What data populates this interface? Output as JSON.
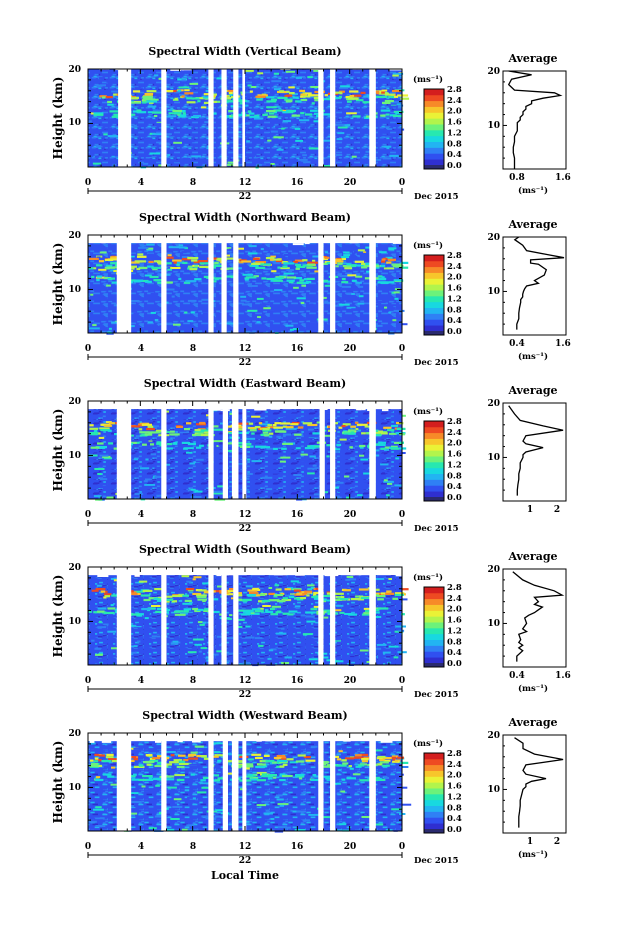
{
  "figure": {
    "xlabel": "Local Time",
    "date_label": "Dec 2015",
    "day_label": "22",
    "colorbar_unit": "(ms⁻¹)",
    "colorbar_ticks": [
      "0.0",
      "0.4",
      "0.8",
      "1.2",
      "1.6",
      "2.0",
      "2.4",
      "2.8"
    ],
    "profile_title": "Average",
    "profile_xlabel": "(ms⁻¹)",
    "ylabel": "Height (km)",
    "palette": [
      "#2a2a6e",
      "#2f2fd0",
      "#3050f0",
      "#2f80f5",
      "#22b4f2",
      "#18d8e0",
      "#27e8b0",
      "#6cf27a",
      "#b2f44c",
      "#eaf236",
      "#f7c62b",
      "#f78a28",
      "#ee4a22",
      "#d41e1e"
    ]
  },
  "chart_data": [
    {
      "type": "heatmap",
      "title": "Spectral Width (Vertical Beam)",
      "xticks": [
        "0",
        "4",
        "8",
        "12",
        "16",
        "20",
        "0"
      ],
      "xlim": [
        0,
        24
      ],
      "yticks": [
        "10",
        "20"
      ],
      "ylim": [
        2,
        20
      ],
      "gaps": [
        [
          2.3,
          3.3
        ],
        [
          5.6,
          6.0
        ],
        [
          9.2,
          9.6
        ],
        [
          10.2,
          10.6
        ],
        [
          11.1,
          11.5
        ],
        [
          11.8,
          12.0
        ],
        [
          17.6,
          18.0
        ],
        [
          18.5,
          18.9
        ],
        [
          21.5,
          22.0
        ]
      ],
      "profile": {
        "xticks": [
          "0.8",
          "1.6"
        ],
        "xlim": [
          0.6,
          1.7
        ],
        "x": [
          0.8,
          0.8,
          0.8,
          0.78,
          0.78,
          0.8,
          0.8,
          0.85,
          0.85,
          0.85,
          0.9,
          0.9,
          0.95,
          0.95,
          1.0,
          1.0,
          1.1,
          1.1,
          1.3,
          1.6,
          1.5,
          0.8,
          0.7,
          0.75,
          1.1,
          0.7
        ],
        "y": [
          2,
          3,
          4,
          5,
          6,
          7,
          8,
          9,
          10,
          10.5,
          11,
          11.5,
          12,
          12.5,
          13,
          13.5,
          14,
          14.5,
          15,
          15.5,
          16,
          16.5,
          17.5,
          18.5,
          19.3,
          20
        ]
      }
    },
    {
      "type": "heatmap",
      "title": "Spectral Width (Northward Beam)",
      "xticks": [
        "0",
        "4",
        "8",
        "12",
        "16",
        "20",
        "0"
      ],
      "xlim": [
        0,
        24
      ],
      "yticks": [
        "10",
        "20"
      ],
      "ylim": [
        2,
        20
      ],
      "gaps": [
        [
          2.2,
          3.3
        ],
        [
          5.6,
          6.0
        ],
        [
          9.2,
          9.6
        ],
        [
          10.2,
          10.6
        ],
        [
          11.1,
          11.5
        ],
        [
          17.6,
          18.0
        ],
        [
          18.5,
          18.9
        ],
        [
          21.5,
          22.0
        ]
      ],
      "profile": {
        "xticks": [
          "0.4",
          "1.6"
        ],
        "xlim": [
          0.2,
          1.8
        ],
        "x": [
          0.55,
          0.55,
          0.6,
          0.6,
          0.62,
          0.65,
          0.65,
          0.7,
          0.7,
          0.72,
          0.75,
          0.8,
          1.1,
          1.0,
          1.25,
          1.3,
          1.1,
          0.9,
          0.9,
          1.75,
          1.3,
          0.8,
          0.7,
          0.5,
          0.6
        ],
        "y": [
          3,
          4,
          5,
          6,
          7,
          8,
          8.5,
          9,
          9.5,
          10,
          10.5,
          11,
          11.5,
          12,
          13,
          14,
          15,
          15.2,
          15.8,
          16.2,
          16.8,
          17.5,
          18.5,
          19.5,
          20
        ]
      }
    },
    {
      "type": "heatmap",
      "title": "Spectral Width (Eastward Beam)",
      "xticks": [
        "0",
        "4",
        "8",
        "12",
        "16",
        "20",
        "0"
      ],
      "xlim": [
        0,
        24
      ],
      "yticks": [
        "10",
        "20"
      ],
      "ylim": [
        2,
        20
      ],
      "gaps": [
        [
          2.2,
          3.3
        ],
        [
          5.6,
          6.0
        ],
        [
          9.2,
          9.6
        ],
        [
          10.3,
          10.7
        ],
        [
          11.0,
          11.5
        ],
        [
          11.8,
          12.1
        ],
        [
          17.7,
          18.1
        ],
        [
          18.5,
          18.9
        ],
        [
          21.5,
          22.0
        ]
      ],
      "profile": {
        "xticks": [
          "1",
          "2"
        ],
        "xlim": [
          0.2,
          2.4
        ],
        "x": [
          0.7,
          0.7,
          0.72,
          0.75,
          0.75,
          0.8,
          0.8,
          0.85,
          0.9,
          0.9,
          1.0,
          1.6,
          1.0,
          0.9,
          1.0,
          2.3,
          1.6,
          0.8,
          0.6,
          0.4
        ],
        "y": [
          3,
          4,
          5,
          6,
          7,
          8,
          9,
          9.5,
          10,
          10.5,
          11,
          11.8,
          12.5,
          13,
          14,
          15,
          15.8,
          16.8,
          18,
          19.5
        ]
      }
    },
    {
      "type": "heatmap",
      "title": "Spectral Width (Southward Beam)",
      "xticks": [
        "0",
        "4",
        "8",
        "12",
        "16",
        "20",
        "0"
      ],
      "xlim": [
        0,
        24
      ],
      "yticks": [
        "10",
        "20"
      ],
      "ylim": [
        2,
        20
      ],
      "gaps": [
        [
          2.2,
          3.3
        ],
        [
          5.6,
          6.0
        ],
        [
          9.2,
          9.6
        ],
        [
          10.2,
          10.6
        ],
        [
          11.1,
          11.5
        ],
        [
          17.6,
          18.0
        ],
        [
          18.5,
          18.9
        ],
        [
          21.5,
          22.0
        ]
      ],
      "profile": {
        "xticks": [
          "0.4",
          "1.6"
        ],
        "xlim": [
          0.2,
          1.8
        ],
        "x": [
          0.55,
          0.55,
          0.7,
          0.6,
          0.7,
          0.6,
          0.65,
          0.6,
          0.8,
          0.7,
          0.8,
          0.75,
          0.85,
          1.0,
          1.1,
          1.2,
          1.0,
          1.1,
          1.0,
          1.7,
          1.5,
          1.0,
          0.7,
          0.45
        ],
        "y": [
          3,
          4,
          5,
          5.5,
          6,
          6.5,
          7,
          8,
          8.5,
          9,
          10,
          11,
          11.5,
          12,
          12.5,
          13,
          13.5,
          14,
          14.8,
          15.2,
          16,
          17,
          18,
          19.5
        ]
      }
    },
    {
      "type": "heatmap",
      "title": "Spectral Width (Westward Beam)",
      "xticks": [
        "0",
        "4",
        "8",
        "12",
        "16",
        "20",
        "0"
      ],
      "xlim": [
        0,
        24
      ],
      "yticks": [
        "10",
        "20"
      ],
      "ylim": [
        2,
        20
      ],
      "gaps": [
        [
          2.2,
          3.3
        ],
        [
          5.6,
          6.0
        ],
        [
          9.2,
          9.6
        ],
        [
          10.3,
          10.7
        ],
        [
          11.0,
          11.5
        ],
        [
          11.8,
          12.1
        ],
        [
          17.6,
          18.0
        ],
        [
          18.5,
          18.9
        ],
        [
          21.5,
          22.0
        ]
      ],
      "profile": {
        "xticks": [
          "1",
          "2"
        ],
        "xlim": [
          0.2,
          2.4
        ],
        "x": [
          0.75,
          0.75,
          0.75,
          0.78,
          0.8,
          0.8,
          0.85,
          0.9,
          1.0,
          1.0,
          1.2,
          1.7,
          1.0,
          0.9,
          1.0,
          2.3,
          1.3,
          0.9,
          0.9,
          0.6
        ],
        "y": [
          3,
          4,
          5,
          6,
          7,
          8,
          9,
          10,
          10.5,
          11,
          11.5,
          12,
          12.8,
          13.5,
          14.5,
          15.5,
          16.5,
          17.5,
          18.5,
          19.5
        ]
      }
    }
  ]
}
